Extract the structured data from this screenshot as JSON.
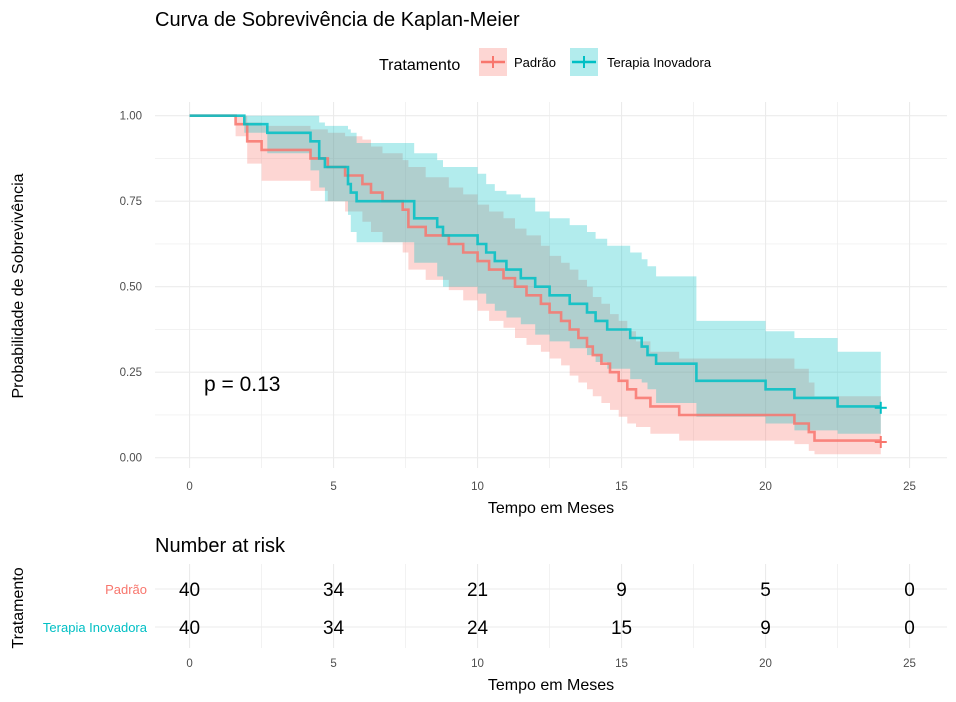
{
  "colors": {
    "padrao": "#F8766D",
    "terapia": "#00BFC4",
    "grid": "#EBEBEB",
    "tick_text": "#4D4D4D",
    "text": "#000000"
  },
  "chart_data": [
    {
      "type": "line",
      "subtype": "kaplan-meier step",
      "title": "Curva de Sobrevivência de Kaplan-Meier",
      "xlabel": "Tempo em Meses",
      "ylabel": "Probabilidade de Sobrevivência",
      "xlim": [
        -1.2,
        26.3
      ],
      "ylim": [
        -0.03,
        1.04
      ],
      "x_ticks": [
        0,
        5,
        10,
        15,
        20,
        25
      ],
      "y_ticks": [
        0.0,
        0.25,
        0.5,
        0.75,
        1.0
      ],
      "x_tick_labels": [
        "0",
        "5",
        "10",
        "15",
        "20",
        "25"
      ],
      "y_tick_labels": [
        "0.00",
        "0.25",
        "0.50",
        "0.75",
        "1.00"
      ],
      "grid": true,
      "legend": {
        "title": "Tratamento",
        "position": "top",
        "entries": [
          "Padrão",
          "Terapia Inovadora"
        ]
      },
      "annotation": "p = 0.13",
      "annotation_at": [
        0.5,
        0.195
      ],
      "series": [
        {
          "name": "Padrão",
          "censor_end": [
            24,
            0.046
          ],
          "steps": [
            [
              0,
              1.0
            ],
            [
              1.6,
              0.975
            ],
            [
              2.0,
              0.925
            ],
            [
              2.5,
              0.9
            ],
            [
              4.2,
              0.875
            ],
            [
              4.8,
              0.85
            ],
            [
              5.4,
              0.825
            ],
            [
              6.0,
              0.8
            ],
            [
              6.3,
              0.775
            ],
            [
              6.7,
              0.75
            ],
            [
              7.4,
              0.725
            ],
            [
              7.6,
              0.675
            ],
            [
              8.2,
              0.65
            ],
            [
              9.0,
              0.625
            ],
            [
              9.5,
              0.6
            ],
            [
              10.0,
              0.575
            ],
            [
              10.4,
              0.55
            ],
            [
              10.9,
              0.525
            ],
            [
              11.3,
              0.5
            ],
            [
              11.7,
              0.475
            ],
            [
              12.2,
              0.45
            ],
            [
              12.5,
              0.425
            ],
            [
              12.9,
              0.4
            ],
            [
              13.2,
              0.375
            ],
            [
              13.5,
              0.35
            ],
            [
              13.8,
              0.325
            ],
            [
              14.0,
              0.3
            ],
            [
              14.3,
              0.275
            ],
            [
              14.6,
              0.25
            ],
            [
              14.9,
              0.225
            ],
            [
              15.2,
              0.2
            ],
            [
              15.5,
              0.175
            ],
            [
              16.0,
              0.15
            ],
            [
              17.0,
              0.125
            ],
            [
              21.0,
              0.1
            ],
            [
              21.5,
              0.075
            ],
            [
              21.7,
              0.05
            ],
            [
              24,
              0.05
            ]
          ],
          "ci_upper": [
            [
              0,
              1.0
            ],
            [
              1.6,
              1.0
            ],
            [
              2.0,
              0.98
            ],
            [
              2.5,
              0.97
            ],
            [
              4.2,
              0.96
            ],
            [
              4.8,
              0.95
            ],
            [
              5.4,
              0.94
            ],
            [
              6.0,
              0.93
            ],
            [
              6.3,
              0.91
            ],
            [
              6.7,
              0.89
            ],
            [
              7.4,
              0.87
            ],
            [
              7.6,
              0.85
            ],
            [
              8.2,
              0.82
            ],
            [
              9.0,
              0.79
            ],
            [
              9.5,
              0.77
            ],
            [
              10.0,
              0.74
            ],
            [
              10.4,
              0.72
            ],
            [
              10.9,
              0.7
            ],
            [
              11.3,
              0.67
            ],
            [
              11.7,
              0.65
            ],
            [
              12.2,
              0.62
            ],
            [
              12.5,
              0.59
            ],
            [
              12.9,
              0.57
            ],
            [
              13.2,
              0.55
            ],
            [
              13.5,
              0.52
            ],
            [
              13.8,
              0.5
            ],
            [
              14.0,
              0.47
            ],
            [
              14.3,
              0.45
            ],
            [
              14.6,
              0.42
            ],
            [
              14.9,
              0.4
            ],
            [
              15.2,
              0.37
            ],
            [
              15.5,
              0.34
            ],
            [
              16.0,
              0.31
            ],
            [
              17.0,
              0.29
            ],
            [
              21.0,
              0.26
            ],
            [
              21.5,
              0.22
            ],
            [
              21.7,
              0.18
            ],
            [
              24,
              0.18
            ]
          ],
          "ci_lower": [
            [
              0,
              1.0
            ],
            [
              1.6,
              0.94
            ],
            [
              2.0,
              0.86
            ],
            [
              2.5,
              0.81
            ],
            [
              4.2,
              0.78
            ],
            [
              4.8,
              0.75
            ],
            [
              5.4,
              0.72
            ],
            [
              6.0,
              0.69
            ],
            [
              6.3,
              0.66
            ],
            [
              6.7,
              0.63
            ],
            [
              7.4,
              0.6
            ],
            [
              7.6,
              0.55
            ],
            [
              8.2,
              0.52
            ],
            [
              9.0,
              0.49
            ],
            [
              9.5,
              0.46
            ],
            [
              10.0,
              0.43
            ],
            [
              10.4,
              0.4
            ],
            [
              10.9,
              0.38
            ],
            [
              11.3,
              0.35
            ],
            [
              11.7,
              0.33
            ],
            [
              12.2,
              0.31
            ],
            [
              12.5,
              0.29
            ],
            [
              12.9,
              0.27
            ],
            [
              13.2,
              0.24
            ],
            [
              13.5,
              0.22
            ],
            [
              13.8,
              0.2
            ],
            [
              14.0,
              0.18
            ],
            [
              14.3,
              0.16
            ],
            [
              14.6,
              0.14
            ],
            [
              14.9,
              0.12
            ],
            [
              15.2,
              0.1
            ],
            [
              15.5,
              0.09
            ],
            [
              16.0,
              0.07
            ],
            [
              17.0,
              0.05
            ],
            [
              21.0,
              0.04
            ],
            [
              21.5,
              0.02
            ],
            [
              21.7,
              0.01
            ],
            [
              24,
              0.01
            ]
          ]
        },
        {
          "name": "Terapia Inovadora",
          "censor_end": [
            24,
            0.146
          ],
          "steps": [
            [
              0,
              1.0
            ],
            [
              1.9,
              0.975
            ],
            [
              2.7,
              0.95
            ],
            [
              4.2,
              0.925
            ],
            [
              4.5,
              0.875
            ],
            [
              4.7,
              0.85
            ],
            [
              5.5,
              0.8
            ],
            [
              5.6,
              0.775
            ],
            [
              5.8,
              0.75
            ],
            [
              7.8,
              0.7
            ],
            [
              8.6,
              0.675
            ],
            [
              8.8,
              0.65
            ],
            [
              10.0,
              0.625
            ],
            [
              10.3,
              0.6
            ],
            [
              10.6,
              0.575
            ],
            [
              11.0,
              0.55
            ],
            [
              11.5,
              0.525
            ],
            [
              12.0,
              0.5
            ],
            [
              12.5,
              0.475
            ],
            [
              13.2,
              0.45
            ],
            [
              13.8,
              0.425
            ],
            [
              14.1,
              0.4
            ],
            [
              14.5,
              0.375
            ],
            [
              15.3,
              0.35
            ],
            [
              15.7,
              0.325
            ],
            [
              15.9,
              0.3
            ],
            [
              16.2,
              0.275
            ],
            [
              17.6,
              0.225
            ],
            [
              20.0,
              0.2
            ],
            [
              21.0,
              0.175
            ],
            [
              22.5,
              0.15
            ],
            [
              24,
              0.15
            ]
          ],
          "ci_upper": [
            [
              0,
              1.0
            ],
            [
              1.9,
              1.0
            ],
            [
              2.7,
              1.0
            ],
            [
              4.2,
              1.0
            ],
            [
              4.5,
              0.98
            ],
            [
              4.7,
              0.97
            ],
            [
              5.5,
              0.96
            ],
            [
              5.6,
              0.95
            ],
            [
              5.8,
              0.92
            ],
            [
              7.8,
              0.89
            ],
            [
              8.6,
              0.87
            ],
            [
              8.8,
              0.85
            ],
            [
              10.0,
              0.83
            ],
            [
              10.3,
              0.8
            ],
            [
              10.6,
              0.78
            ],
            [
              11.0,
              0.77
            ],
            [
              11.5,
              0.76
            ],
            [
              12.0,
              0.72
            ],
            [
              12.5,
              0.7
            ],
            [
              13.2,
              0.68
            ],
            [
              13.8,
              0.66
            ],
            [
              14.1,
              0.64
            ],
            [
              14.5,
              0.62
            ],
            [
              15.3,
              0.6
            ],
            [
              15.7,
              0.58
            ],
            [
              15.9,
              0.56
            ],
            [
              16.2,
              0.53
            ],
            [
              17.6,
              0.4
            ],
            [
              20.0,
              0.37
            ],
            [
              21.0,
              0.35
            ],
            [
              22.5,
              0.31
            ],
            [
              24,
              0.31
            ]
          ],
          "ci_lower": [
            [
              0,
              1.0
            ],
            [
              1.9,
              0.95
            ],
            [
              2.7,
              0.89
            ],
            [
              4.2,
              0.84
            ],
            [
              4.5,
              0.79
            ],
            [
              4.7,
              0.75
            ],
            [
              5.5,
              0.71
            ],
            [
              5.6,
              0.66
            ],
            [
              5.8,
              0.63
            ],
            [
              7.8,
              0.57
            ],
            [
              8.6,
              0.53
            ],
            [
              8.8,
              0.5
            ],
            [
              10.0,
              0.48
            ],
            [
              10.3,
              0.45
            ],
            [
              10.6,
              0.43
            ],
            [
              11.0,
              0.41
            ],
            [
              11.5,
              0.39
            ],
            [
              12.0,
              0.36
            ],
            [
              12.5,
              0.34
            ],
            [
              13.2,
              0.32
            ],
            [
              13.8,
              0.3
            ],
            [
              14.1,
              0.28
            ],
            [
              14.5,
              0.26
            ],
            [
              15.3,
              0.23
            ],
            [
              15.7,
              0.22
            ],
            [
              15.9,
              0.2
            ],
            [
              16.2,
              0.16
            ],
            [
              17.6,
              0.12
            ],
            [
              20.0,
              0.1
            ],
            [
              21.0,
              0.08
            ],
            [
              22.5,
              0.07
            ],
            [
              24,
              0.07
            ]
          ]
        }
      ]
    },
    {
      "type": "table",
      "title": "Number at risk",
      "ylabel": "Tratamento",
      "xlabel": "Tempo em Meses",
      "x_ticks": [
        0,
        5,
        10,
        15,
        20,
        25
      ],
      "x_tick_labels": [
        "0",
        "5",
        "10",
        "15",
        "20",
        "25"
      ],
      "rows": [
        {
          "name": "Padrão",
          "values": [
            40,
            34,
            21,
            9,
            5,
            0
          ]
        },
        {
          "name": "Terapia Inovadora",
          "values": [
            40,
            34,
            24,
            15,
            9,
            0
          ]
        }
      ]
    }
  ]
}
